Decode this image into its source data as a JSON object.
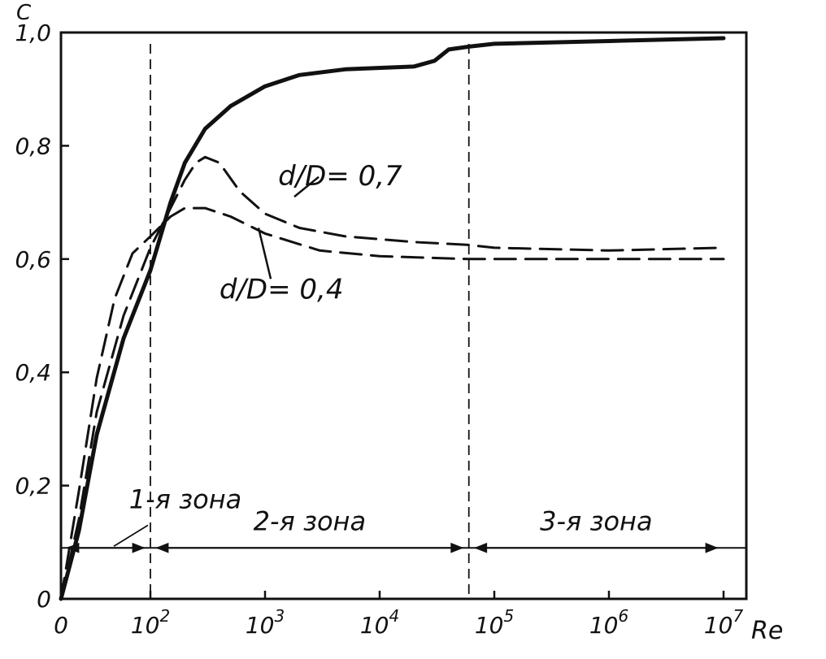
{
  "chart_data": {
    "type": "line",
    "title": "",
    "ylabel": "C",
    "xlabel": "Re",
    "x_scale": "log",
    "ylim": [
      0,
      1.0
    ],
    "y_ticks": [
      {
        "value": 0,
        "label": "0"
      },
      {
        "value": 0.2,
        "label": "0,2"
      },
      {
        "value": 0.4,
        "label": "0,4"
      },
      {
        "value": 0.6,
        "label": "0,6"
      },
      {
        "value": 0.8,
        "label": "0,8"
      },
      {
        "value": 1.0,
        "label": "1,0"
      }
    ],
    "x_ticks": [
      {
        "value": 0,
        "base": "0",
        "exp": ""
      },
      {
        "value": 100,
        "base": "10",
        "exp": "2"
      },
      {
        "value": 1000,
        "base": "10",
        "exp": "3"
      },
      {
        "value": 10000,
        "base": "10",
        "exp": "4"
      },
      {
        "value": 100000,
        "base": "10",
        "exp": "5"
      },
      {
        "value": 1000000,
        "base": "10",
        "exp": "6"
      },
      {
        "value": 10000000,
        "base": "10",
        "exp": "7"
      }
    ],
    "series": [
      {
        "name": "",
        "style": "solid",
        "x": [
          0,
          20,
          40,
          70,
          100,
          150,
          200,
          300,
          500,
          1000,
          2000,
          5000,
          20000,
          30000,
          40000,
          60000,
          100000,
          1000000,
          10000000
        ],
        "y": [
          0,
          0.12,
          0.29,
          0.46,
          0.58,
          0.7,
          0.77,
          0.83,
          0.87,
          0.905,
          0.925,
          0.935,
          0.94,
          0.95,
          0.97,
          0.975,
          0.98,
          0.985,
          0.99
        ]
      },
      {
        "name": "",
        "style": "dashed",
        "x": [
          0,
          20,
          40,
          70,
          100,
          150,
          200,
          250,
          300,
          400,
          600,
          1000,
          2000,
          5000,
          20000,
          60000,
          100000,
          1000000,
          10000000
        ],
        "y": [
          0,
          0.14,
          0.33,
          0.5,
          0.62,
          0.69,
          0.74,
          0.77,
          0.78,
          0.77,
          0.72,
          0.68,
          0.655,
          0.64,
          0.63,
          0.625,
          0.62,
          0.615,
          0.62
        ]
      },
      {
        "name": "",
        "style": "dashed",
        "x": [
          0,
          20,
          40,
          60,
          80,
          100,
          150,
          200,
          300,
          500,
          1000,
          3000,
          10000,
          60000,
          100000,
          1000000,
          10000000
        ],
        "y": [
          0,
          0.19,
          0.39,
          0.53,
          0.61,
          0.64,
          0.675,
          0.69,
          0.69,
          0.675,
          0.645,
          0.615,
          0.605,
          0.6,
          0.6,
          0.6,
          0.6
        ]
      }
    ],
    "annotations": [
      {
        "text": "d/D= 0,7",
        "x": 1300,
        "y": 0.73
      },
      {
        "text": "d/D= 0,4",
        "x": 400,
        "y": 0.53
      }
    ],
    "zones": [
      {
        "label": "1-я зона",
        "from": 0,
        "to": 100
      },
      {
        "label": "2-я зона",
        "from": 100,
        "to": 60000
      },
      {
        "label": "3-я зона",
        "from": 60000,
        "to": 10000000
      }
    ],
    "zone_arrow_y": 0.09,
    "boundaries": [
      100,
      60000
    ],
    "grid": false,
    "legend": "none"
  }
}
